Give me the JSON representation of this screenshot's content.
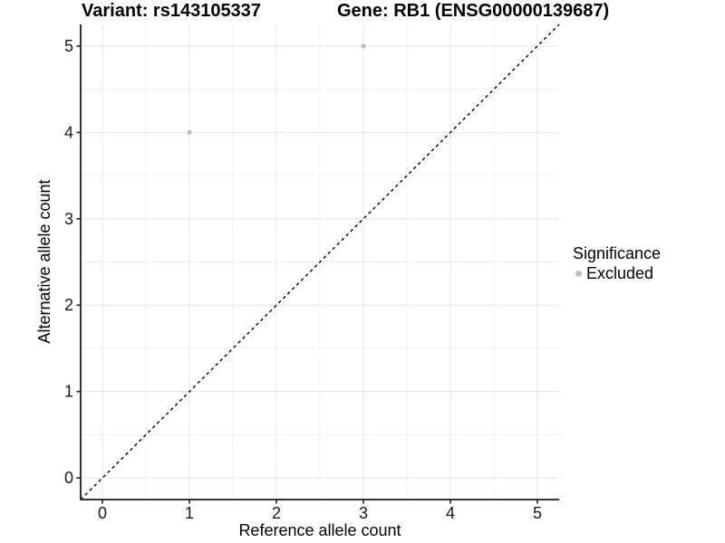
{
  "chart_data": {
    "type": "scatter",
    "titles": {
      "left": "Variant: rs143105337",
      "right": "Gene: RB1 (ENSG00000139687)"
    },
    "xlabel": "Reference allele count",
    "ylabel": "Alternative allele count",
    "xlim": [
      -0.25,
      5.25
    ],
    "ylim": [
      -0.25,
      5.25
    ],
    "x_ticks": [
      0,
      1,
      2,
      3,
      4,
      5
    ],
    "y_ticks": [
      0,
      1,
      2,
      3,
      4,
      5
    ],
    "grid": {
      "show": true,
      "major_every": 1,
      "minor_every": 0.5,
      "major_color": "#e4e4e4",
      "minor_color": "#efefef"
    },
    "identity_line": {
      "description": "dashed y = x reference line, corner to corner",
      "color": "#000000",
      "dash": [
        3.5,
        3.5
      ],
      "width": 1.4
    },
    "series": [
      {
        "name": "Excluded",
        "color": "#bebebe",
        "point_radius_px": 2.6,
        "points": [
          {
            "x": 1,
            "y": 4
          },
          {
            "x": 3,
            "y": 5
          }
        ]
      }
    ],
    "legend": {
      "title": "Significance",
      "position": "right",
      "entries": [
        {
          "label": "Excluded",
          "color": "#bebebe",
          "marker": "circle"
        }
      ]
    }
  },
  "colors": {
    "background": "#ffffff",
    "axis_line": "#333333",
    "tick_mark": "#333333",
    "tick_label": "#1a1a1a",
    "title_text": "#000000"
  }
}
